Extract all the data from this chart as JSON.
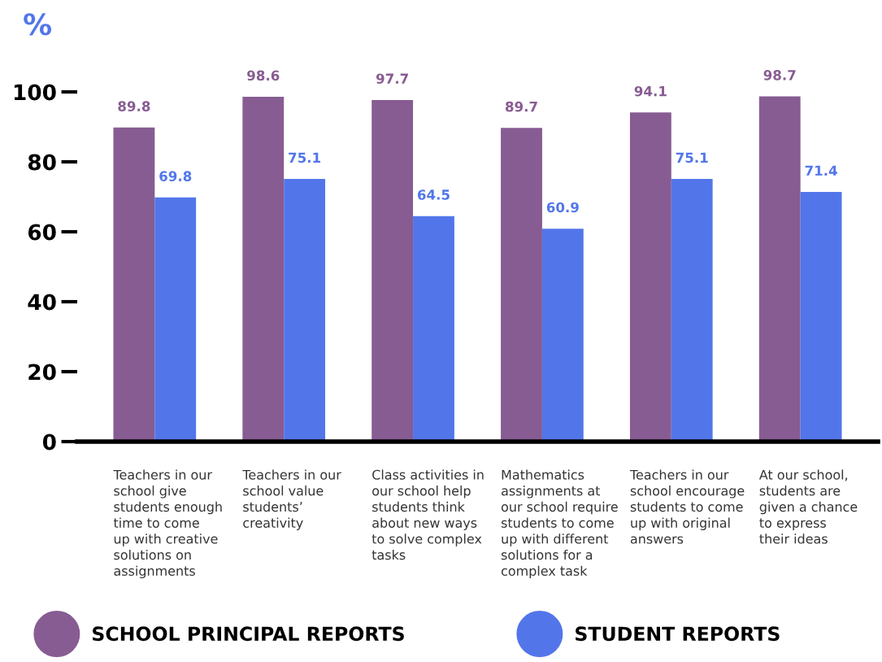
{
  "chart_data": {
    "type": "bar",
    "ylabel": "%",
    "categories": [
      "Teachers in our\nschool give\nstudents enough\ntime to come\nup with creative\nsolutions on\nassignments",
      "Teachers in our\nschool value\nstudents’\ncreativity",
      "Class activities in\nour school help\nstudents think\nabout new ways\nto solve complex\ntasks",
      "Mathematics\nassignments at\nour school require\nstudents to come\nup with different\nsolutions for a\ncomplex task",
      "Teachers in our\nschool encourage\nstudents to come\nup with original\nanswers",
      "At our school,\nstudents are\ngiven a chance\nto express\ntheir ideas"
    ],
    "series": [
      {
        "name": "SCHOOL PRINCIPAL REPORTS",
        "color": "#875c92",
        "values": [
          89.8,
          98.6,
          97.7,
          89.7,
          94.1,
          98.7
        ]
      },
      {
        "name": "STUDENT REPORTS",
        "color": "#5276ea",
        "values": [
          69.8,
          75.1,
          64.5,
          60.9,
          75.1,
          71.4
        ]
      }
    ],
    "ylim": [
      0,
      100
    ],
    "yticks": [
      0,
      20,
      40,
      60,
      80,
      100
    ],
    "data_labels": true,
    "grid": false,
    "legend": "bottom"
  }
}
